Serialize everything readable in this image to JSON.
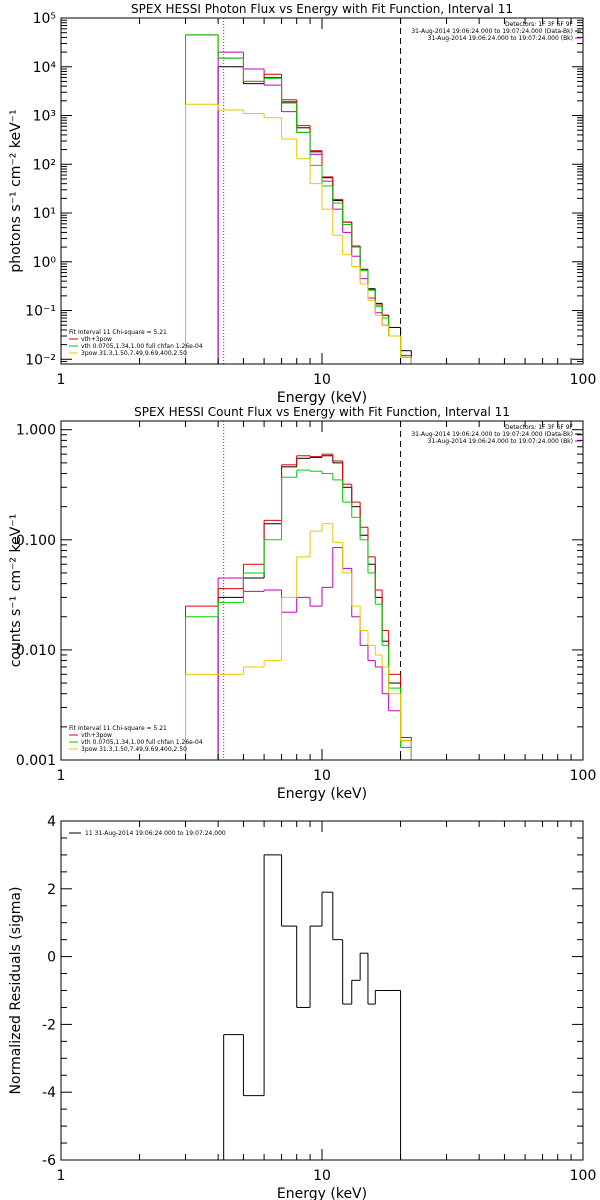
{
  "chart_data": [
    {
      "type": "line",
      "title": "SPEX HESSI Photon Flux vs Energy with Fit Function, Interval 11",
      "xlabel": "Energy (keV)",
      "ylabel": "photons s⁻¹ cm⁻² keV⁻¹",
      "xscale": "log",
      "yscale": "log",
      "xlim": [
        1,
        100
      ],
      "ylim": [
        0.008,
        100000
      ],
      "x_tick_labels": [
        "1",
        "10",
        "100"
      ],
      "y_tick_labels": [
        "10⁵",
        "10⁴",
        "10³",
        "10²",
        "10¹",
        "10⁰",
        "10⁻¹",
        "10⁻²"
      ],
      "info_lines": [
        "Detectors: 1F 3F 6F 9F",
        "31-Aug-2014 19:06:24.000 to 19:07:24.000 (Data-Bk)",
        "31-Aug-2014 19:06:24.000 to 19:07:24.000 (Bk)"
      ],
      "fit_legend": [
        {
          "label": "Fit Interval 11   Chi-square = 5.21",
          "color": ""
        },
        {
          "label": "vth+3pow",
          "color": "#e00000"
        },
        {
          "label": "vth 0.0705,1.34,1.00  full chfan 1.26e-04",
          "color": "#00d000"
        },
        {
          "label": "3pow 31.3,1.50,7.49,9.69,400,2.50",
          "color": "#e8c800"
        }
      ],
      "vlines": [
        {
          "x": 4.2,
          "style": "dotted",
          "color": "#c000c0"
        },
        {
          "x": 20,
          "style": "dashed",
          "color": "#000000"
        }
      ],
      "edges": [
        3,
        4,
        5,
        6,
        7,
        8,
        9,
        10,
        11,
        12,
        13,
        14,
        15,
        16,
        17,
        18,
        20,
        22
      ],
      "series": [
        {
          "name": "Data-Bk",
          "color": "#000000",
          "values": [
            null,
            10000,
            4500,
            6000,
            1900,
            560,
            180,
            53,
            18,
            6.5,
            2.1,
            0.7,
            0.28,
            0.14,
            0.08,
            0.045,
            0.015
          ]
        },
        {
          "name": "Bk",
          "color": "#c000c0",
          "values": [
            null,
            20000,
            9000,
            4200,
            1200,
            450,
            160,
            45,
            12,
            4,
            1.3,
            0.45,
            0.18,
            0.09,
            0.05,
            0.03,
            0.012
          ]
        },
        {
          "name": "vth+3pow",
          "color": "#e00000",
          "values": [
            45000,
            15000,
            5000,
            7000,
            2100,
            620,
            190,
            55,
            19,
            6.5,
            2.1,
            0.7,
            0.27,
            0.13,
            0.08,
            0.03,
            0.011
          ]
        },
        {
          "name": "vth",
          "color": "#00d000",
          "values": [
            45000,
            15000,
            5000,
            5800,
            1800,
            450,
            95,
            36,
            16,
            5.8,
            2.0,
            0.66,
            0.26,
            0.12,
            0.07,
            0.03,
            0.011
          ]
        },
        {
          "name": "3pow",
          "color": "#e8c800",
          "values": [
            1700,
            1300,
            1100,
            900,
            330,
            130,
            40,
            12,
            3.5,
            1.4,
            0.8,
            0.35,
            0.16,
            0.08,
            0.05,
            0.03,
            0.011
          ]
        }
      ]
    },
    {
      "type": "line",
      "title": "SPEX HESSI Count Flux vs Energy with Fit Function, Interval 11",
      "xlabel": "Energy (keV)",
      "ylabel": "counts s⁻¹ cm⁻² keV⁻¹",
      "xscale": "log",
      "yscale": "log",
      "xlim": [
        1,
        100
      ],
      "ylim": [
        0.001,
        1.2
      ],
      "x_tick_labels": [
        "1",
        "10",
        "100"
      ],
      "y_tick_labels": [
        "1.000",
        "0.100",
        "0.010",
        "0.001"
      ],
      "info_lines": [
        "Detectors: 1F 3F 6F 9F",
        "31-Aug-2014 19:06:24.000 to 19:07:24.000 (Data-Bk)",
        "31-Aug-2014 19:06:24.000 to 19:07:24.000 (Bk)"
      ],
      "fit_legend": [
        {
          "label": "Fit Interval 11   Chi-square = 5.21",
          "color": ""
        },
        {
          "label": "vth+3pow",
          "color": "#e00000"
        },
        {
          "label": "vth 0.0705,1.34,1.00  full chfan 1.26e-04",
          "color": "#00d000"
        },
        {
          "label": "3pow 31.3,1.50,7.49,9.69,400,2.50",
          "color": "#e8c800"
        }
      ],
      "vlines": [
        {
          "x": 4.2,
          "style": "dotted",
          "color": "#c000c0"
        },
        {
          "x": 20,
          "style": "dashed",
          "color": "#000000"
        }
      ],
      "edges": [
        3,
        4,
        5,
        6,
        7,
        8,
        9,
        10,
        11,
        12,
        13,
        14,
        15,
        16,
        17,
        18,
        20,
        22
      ],
      "series": [
        {
          "name": "Data-Bk",
          "color": "#000000",
          "values": [
            null,
            0.03,
            0.045,
            0.14,
            0.46,
            0.55,
            0.56,
            0.58,
            0.5,
            0.3,
            0.2,
            0.11,
            0.06,
            0.03,
            0.012,
            0.005,
            0.0015
          ]
        },
        {
          "name": "Bk",
          "color": "#c000c0",
          "values": [
            null,
            0.045,
            0.034,
            0.035,
            0.022,
            0.03,
            0.025,
            0.037,
            0.085,
            0.055,
            0.02,
            0.011,
            0.008,
            0.007,
            0.004,
            0.0028,
            0.0013
          ]
        },
        {
          "name": "vth+3pow",
          "color": "#e00000",
          "values": [
            0.025,
            0.036,
            0.06,
            0.15,
            0.48,
            0.58,
            0.57,
            0.6,
            0.52,
            0.32,
            0.22,
            0.13,
            0.07,
            0.035,
            0.015,
            0.006,
            0.0016
          ]
        },
        {
          "name": "vth",
          "color": "#00d000",
          "values": [
            0.02,
            0.027,
            0.05,
            0.1,
            0.37,
            0.43,
            0.42,
            0.4,
            0.35,
            0.22,
            0.16,
            0.1,
            0.05,
            0.026,
            0.011,
            0.0045,
            0.0013
          ]
        },
        {
          "name": "3pow",
          "color": "#e8c800",
          "values": [
            0.006,
            0.006,
            0.007,
            0.008,
            0.03,
            0.07,
            0.12,
            0.14,
            0.095,
            0.05,
            0.025,
            0.015,
            0.011,
            0.009,
            0.007,
            0.004,
            0.0015
          ]
        }
      ]
    },
    {
      "type": "line",
      "title": "",
      "xlabel": "Energy (keV)",
      "ylabel": "Normalized Residuals (sigma)",
      "xscale": "log",
      "yscale": "linear",
      "xlim": [
        1,
        100
      ],
      "ylim": [
        -6,
        4
      ],
      "x_tick_labels": [
        "1",
        "10",
        "100"
      ],
      "y_tick_labels": [
        "4",
        "2",
        "0",
        "-2",
        "-4",
        "-6"
      ],
      "legend": [
        {
          "label": "11  31-Aug-2014 19:06:24.000 to 19:07:24.000",
          "color": "#000000"
        }
      ],
      "edges": [
        4.2,
        5,
        6,
        7,
        8,
        9,
        10,
        11,
        12,
        13,
        14,
        15,
        16,
        17,
        18,
        20
      ],
      "series": [
        {
          "name": "11",
          "color": "#000000",
          "values": [
            -2.3,
            -4.1,
            3.0,
            0.9,
            -1.5,
            0.9,
            1.9,
            0.5,
            -1.4,
            -0.7,
            0.1,
            -1.4,
            -1.0,
            -1.0,
            -1.0
          ]
        }
      ]
    }
  ]
}
